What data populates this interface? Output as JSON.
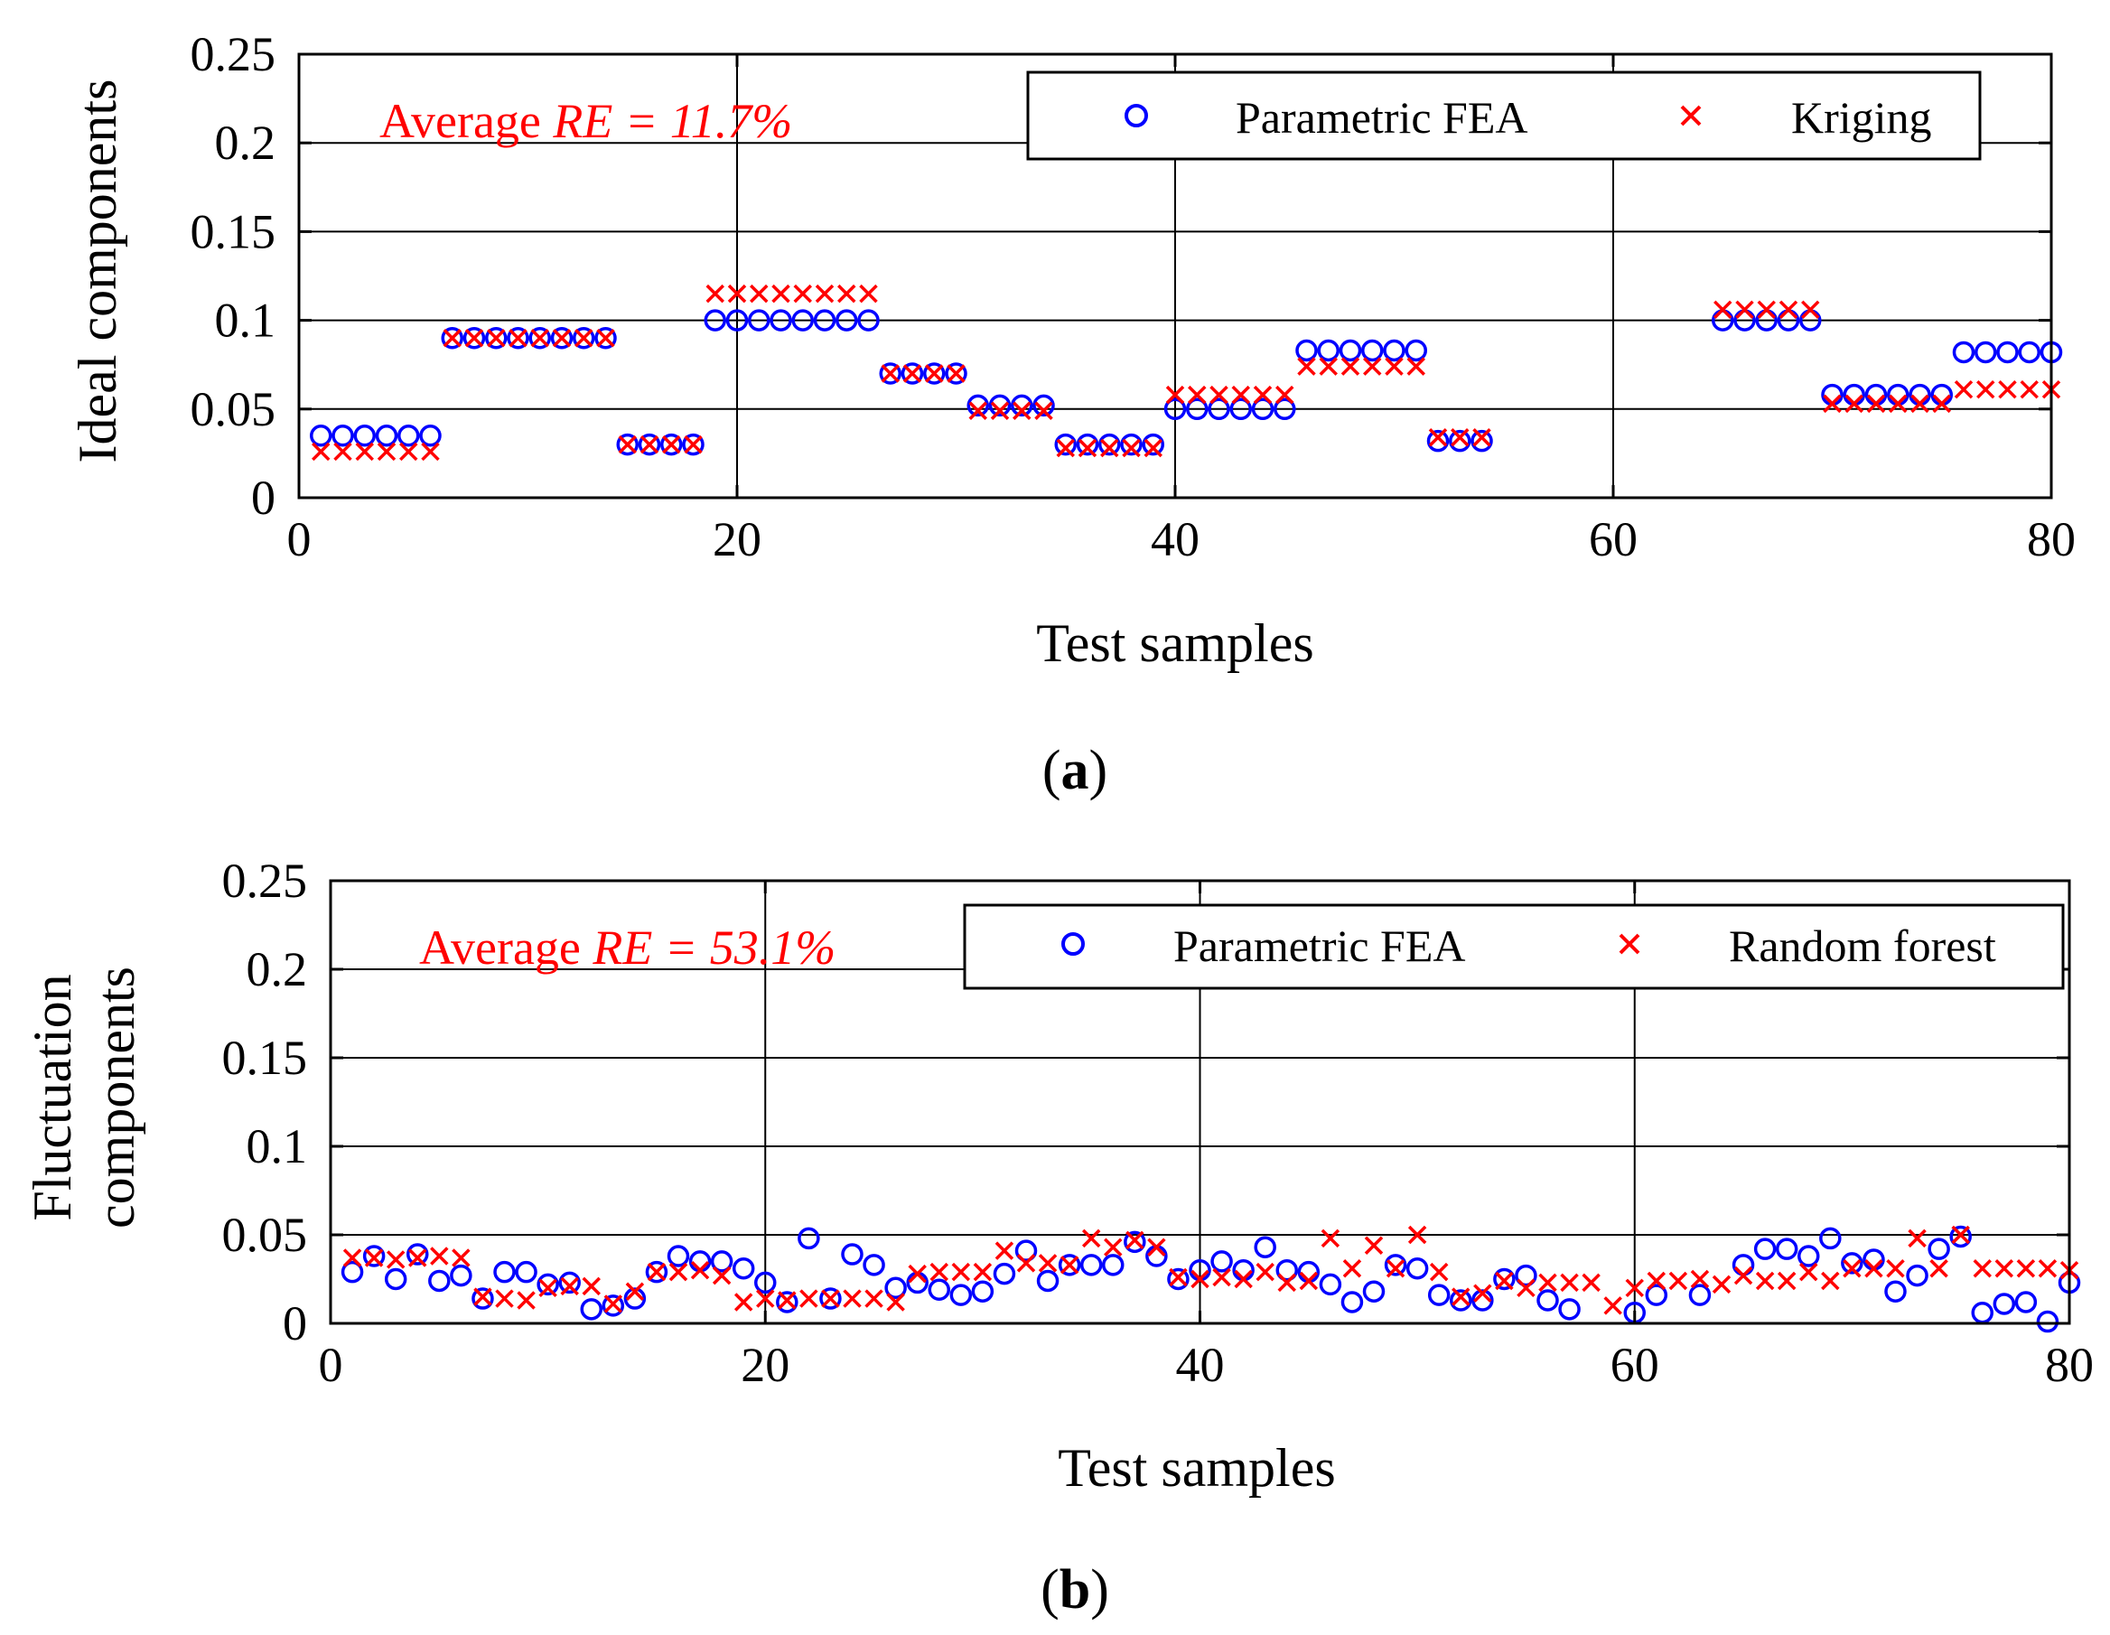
{
  "colors": {
    "fea": "#0000ff",
    "pred": "#ff0000",
    "grid": "#000000",
    "axis": "#000000",
    "text": "#000000"
  },
  "panels": [
    {
      "tag": "(a)",
      "tag_letter": "a",
      "annotation_prefix": "Average ",
      "annotation_re": "RE = 11.7%",
      "legend": [
        "Parametric FEA",
        "Kriging"
      ]
    },
    {
      "tag": "(b)",
      "tag_letter": "b",
      "annotation_prefix": "Average ",
      "annotation_re": "RE = 53.1%",
      "legend": [
        "Parametric FEA",
        "Random forest"
      ]
    }
  ],
  "chart_data": [
    {
      "type": "scatter",
      "xlabel": "Test samples",
      "ylabel": "Ideal components",
      "xlim": [
        0,
        80
      ],
      "ylim": [
        0,
        0.25
      ],
      "xticks": [
        0,
        20,
        40,
        60,
        80
      ],
      "xtick_labels": [
        "0",
        "20",
        "40",
        "60",
        "80"
      ],
      "yticks": [
        0,
        0.05,
        0.1,
        0.15,
        0.2,
        0.25
      ],
      "ytick_labels": [
        "0",
        "0.05",
        "0.1",
        "0.15",
        "0.2",
        "0.25"
      ],
      "grid": true,
      "legend_position": "top-right",
      "series": [
        {
          "name": "Parametric FEA",
          "marker": "circle",
          "x": [
            1,
            2,
            3,
            4,
            5,
            6,
            7,
            8,
            9,
            10,
            11,
            12,
            13,
            14,
            15,
            16,
            17,
            18,
            19,
            20,
            21,
            22,
            23,
            24,
            25,
            26,
            27,
            28,
            29,
            30,
            31,
            32,
            33,
            34,
            35,
            36,
            37,
            38,
            39,
            40,
            41,
            42,
            43,
            44,
            45,
            46,
            47,
            48,
            49,
            50,
            51,
            52,
            53,
            54,
            65,
            66,
            67,
            68,
            69,
            70,
            71,
            72,
            73,
            74,
            75,
            76,
            77,
            78,
            79,
            80
          ],
          "y": [
            0.035,
            0.035,
            0.035,
            0.035,
            0.035,
            0.035,
            0.09,
            0.09,
            0.09,
            0.09,
            0.09,
            0.09,
            0.09,
            0.09,
            0.03,
            0.03,
            0.03,
            0.03,
            0.1,
            0.1,
            0.1,
            0.1,
            0.1,
            0.1,
            0.1,
            0.1,
            0.07,
            0.07,
            0.07,
            0.07,
            0.052,
            0.052,
            0.052,
            0.052,
            0.03,
            0.03,
            0.03,
            0.03,
            0.03,
            0.05,
            0.05,
            0.05,
            0.05,
            0.05,
            0.05,
            0.083,
            0.083,
            0.083,
            0.083,
            0.083,
            0.083,
            0.032,
            0.032,
            0.032,
            0.1,
            0.1,
            0.1,
            0.1,
            0.1,
            0.058,
            0.058,
            0.058,
            0.058,
            0.058,
            0.058,
            0.082,
            0.082,
            0.082,
            0.082,
            0.082
          ]
        },
        {
          "name": "Kriging",
          "marker": "x",
          "x": [
            1,
            2,
            3,
            4,
            5,
            6,
            7,
            8,
            9,
            10,
            11,
            12,
            13,
            14,
            15,
            16,
            17,
            18,
            19,
            20,
            21,
            22,
            23,
            24,
            25,
            26,
            27,
            28,
            29,
            30,
            31,
            32,
            33,
            34,
            35,
            36,
            37,
            38,
            39,
            40,
            41,
            42,
            43,
            44,
            45,
            46,
            47,
            48,
            49,
            50,
            51,
            52,
            53,
            54,
            65,
            66,
            67,
            68,
            69,
            70,
            71,
            72,
            73,
            74,
            75,
            76,
            77,
            78,
            79,
            80
          ],
          "y": [
            0.026,
            0.026,
            0.026,
            0.026,
            0.026,
            0.026,
            0.09,
            0.09,
            0.09,
            0.09,
            0.09,
            0.09,
            0.09,
            0.09,
            0.03,
            0.03,
            0.03,
            0.03,
            0.115,
            0.115,
            0.115,
            0.115,
            0.115,
            0.115,
            0.115,
            0.115,
            0.07,
            0.07,
            0.07,
            0.07,
            0.049,
            0.049,
            0.049,
            0.049,
            0.028,
            0.028,
            0.028,
            0.028,
            0.028,
            0.058,
            0.058,
            0.058,
            0.058,
            0.058,
            0.058,
            0.074,
            0.074,
            0.074,
            0.074,
            0.074,
            0.074,
            0.034,
            0.034,
            0.034,
            0.106,
            0.106,
            0.106,
            0.106,
            0.106,
            0.053,
            0.053,
            0.053,
            0.053,
            0.053,
            0.053,
            0.061,
            0.061,
            0.061,
            0.061,
            0.061
          ]
        }
      ]
    },
    {
      "type": "scatter",
      "xlabel": "Test samples",
      "ylabel": [
        "Fluctuation",
        "components"
      ],
      "xlim": [
        0,
        80
      ],
      "ylim": [
        0,
        0.25
      ],
      "xticks": [
        0,
        20,
        40,
        60,
        80
      ],
      "xtick_labels": [
        "0",
        "20",
        "40",
        "60",
        "80"
      ],
      "yticks": [
        0,
        0.05,
        0.1,
        0.15,
        0.2,
        0.25
      ],
      "ytick_labels": [
        "0",
        "0.05",
        "0.1",
        "0.15",
        "0.2",
        "0.25"
      ],
      "grid": true,
      "legend_position": "top-right",
      "series": [
        {
          "name": "Parametric FEA",
          "marker": "circle",
          "x": [
            1,
            2,
            3,
            4,
            5,
            6,
            7,
            8,
            9,
            10,
            11,
            12,
            13,
            14,
            15,
            16,
            17,
            18,
            19,
            20,
            21,
            22,
            23,
            24,
            25,
            26,
            27,
            28,
            29,
            30,
            31,
            32,
            33,
            34,
            35,
            36,
            37,
            38,
            39,
            40,
            41,
            42,
            43,
            44,
            45,
            46,
            47,
            48,
            49,
            50,
            51,
            52,
            53,
            54,
            55,
            56,
            57,
            60,
            61,
            63,
            65,
            66,
            67,
            68,
            69,
            70,
            71,
            72,
            73,
            74,
            75,
            76,
            77,
            78,
            79,
            80
          ],
          "y": [
            0.029,
            0.038,
            0.025,
            0.039,
            0.024,
            0.027,
            0.014,
            0.029,
            0.029,
            0.022,
            0.023,
            0.008,
            0.01,
            0.014,
            0.029,
            0.038,
            0.035,
            0.035,
            0.031,
            0.023,
            0.012,
            0.048,
            0.014,
            0.039,
            0.033,
            0.02,
            0.023,
            0.019,
            0.016,
            0.018,
            0.028,
            0.041,
            0.024,
            0.033,
            0.033,
            0.033,
            0.046,
            0.038,
            0.025,
            0.03,
            0.035,
            0.03,
            0.043,
            0.03,
            0.029,
            0.022,
            0.012,
            0.018,
            0.033,
            0.031,
            0.016,
            0.013,
            0.013,
            0.025,
            0.027,
            0.013,
            0.008,
            0.006,
            0.016,
            0.016,
            0.033,
            0.042,
            0.042,
            0.038,
            0.048,
            0.034,
            0.036,
            0.018,
            0.027,
            0.042,
            0.049,
            0.006,
            0.011,
            0.012,
            0.001,
            0.023
          ]
        },
        {
          "name": "Random forest",
          "marker": "x",
          "x": [
            1,
            2,
            3,
            4,
            5,
            6,
            7,
            8,
            9,
            10,
            11,
            12,
            13,
            14,
            15,
            16,
            17,
            18,
            19,
            20,
            21,
            22,
            23,
            24,
            25,
            26,
            27,
            28,
            29,
            30,
            31,
            32,
            33,
            34,
            35,
            36,
            37,
            38,
            39,
            40,
            41,
            42,
            43,
            44,
            45,
            46,
            47,
            48,
            49,
            50,
            51,
            52,
            53,
            54,
            55,
            56,
            57,
            58,
            59,
            60,
            61,
            62,
            63,
            64,
            65,
            66,
            67,
            68,
            69,
            70,
            71,
            72,
            73,
            74,
            75,
            76,
            77,
            78,
            79,
            80
          ],
          "y": [
            0.037,
            0.037,
            0.036,
            0.037,
            0.038,
            0.037,
            0.015,
            0.014,
            0.013,
            0.02,
            0.021,
            0.021,
            0.011,
            0.018,
            0.029,
            0.029,
            0.03,
            0.027,
            0.012,
            0.014,
            0.013,
            0.014,
            0.014,
            0.014,
            0.014,
            0.012,
            0.028,
            0.029,
            0.029,
            0.029,
            0.041,
            0.034,
            0.034,
            0.033,
            0.048,
            0.043,
            0.047,
            0.043,
            0.026,
            0.025,
            0.026,
            0.025,
            0.029,
            0.023,
            0.024,
            0.048,
            0.031,
            0.044,
            0.031,
            0.05,
            0.029,
            0.015,
            0.017,
            0.024,
            0.02,
            0.023,
            0.023,
            0.023,
            0.01,
            0.02,
            0.024,
            0.024,
            0.025,
            0.022,
            0.027,
            0.024,
            0.024,
            0.029,
            0.024,
            0.031,
            0.031,
            0.031,
            0.048,
            0.031,
            0.05,
            0.031,
            0.031,
            0.031,
            0.031,
            0.03
          ]
        }
      ]
    }
  ]
}
